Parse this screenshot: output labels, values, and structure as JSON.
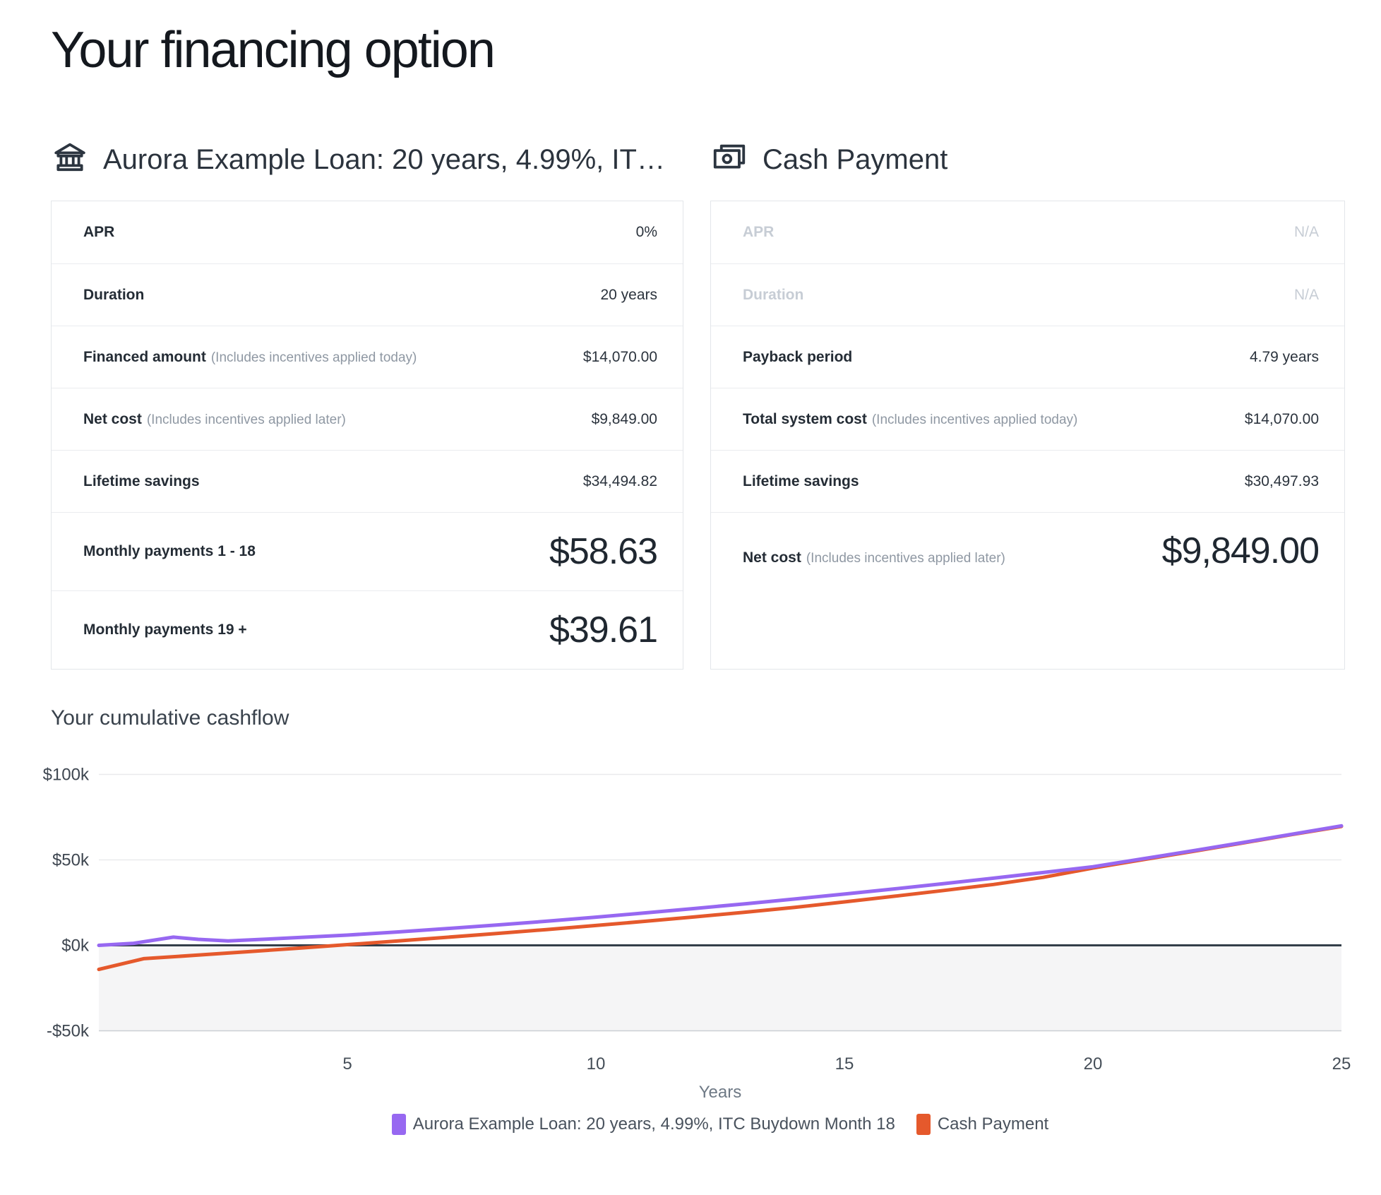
{
  "page": {
    "title": "Your financing option"
  },
  "loan_card": {
    "header": "Aurora Example Loan: 20 years, 4.99%, IT…",
    "icon": "bank-icon",
    "rows": [
      {
        "label": "APR",
        "note": "",
        "value": "0%",
        "size": "",
        "disabled": false
      },
      {
        "label": "Duration",
        "note": "",
        "value": "20 years",
        "size": "",
        "disabled": false
      },
      {
        "label": "Financed amount",
        "note": "(Includes incentives applied today)",
        "value": "$14,070.00",
        "size": "",
        "disabled": false
      },
      {
        "label": "Net cost",
        "note": "(Includes incentives applied later)",
        "value": "$9,849.00",
        "size": "",
        "disabled": false
      },
      {
        "label": "Lifetime savings",
        "note": "",
        "value": "$34,494.82",
        "size": "",
        "disabled": false
      },
      {
        "label": "Monthly payments 1 - 18",
        "note": "",
        "value": "$58.63",
        "size": "large",
        "disabled": false
      },
      {
        "label": "Monthly payments 19 +",
        "note": "",
        "value": "$39.61",
        "size": "large",
        "disabled": false
      }
    ]
  },
  "cash_card": {
    "header": "Cash Payment",
    "icon": "cash-icon",
    "rows": [
      {
        "label": "APR",
        "note": "",
        "value": "N/A",
        "size": "",
        "disabled": true
      },
      {
        "label": "Duration",
        "note": "",
        "value": "N/A",
        "size": "",
        "disabled": true
      },
      {
        "label": "Payback period",
        "note": "",
        "value": "4.79 years",
        "size": "",
        "disabled": false
      },
      {
        "label": "Total system cost",
        "note": "(Includes incentives applied today)",
        "value": "$14,070.00",
        "size": "",
        "disabled": false
      },
      {
        "label": "Lifetime savings",
        "note": "",
        "value": "$30,497.93",
        "size": "",
        "disabled": false
      },
      {
        "label": "Net cost",
        "note": "(Includes incentives applied later)",
        "value": "$9,849.00",
        "size": "xl",
        "disabled": false
      }
    ]
  },
  "chart_data": {
    "type": "line",
    "title": "Your cumulative cashflow",
    "xlabel": "Years",
    "x_range": [
      0,
      25
    ],
    "x_ticks": [
      5,
      10,
      15,
      20,
      25
    ],
    "y_range_k": [
      -50,
      100
    ],
    "y_ticks_k": [
      100,
      50,
      0,
      -50
    ],
    "y_tick_labels": [
      "$100k",
      "$50k",
      "$0k",
      "-$50k"
    ],
    "grid": true,
    "legend_position": "bottom",
    "zero_line_color": "#333e49",
    "below_zero_fill": "#f5f5f6",
    "gridline_color": "#e9eaec",
    "bottom_line_color": "#cbcfd3",
    "series": [
      {
        "name": "Cash Payment",
        "color": "#e5592c",
        "x": [
          0,
          0.9,
          2,
          3,
          4,
          4.8,
          6,
          7,
          8,
          9,
          10,
          11,
          12,
          13,
          14,
          15,
          16,
          17,
          18,
          19,
          20,
          21,
          22,
          23,
          24,
          25
        ],
        "y_k": [
          -14.1,
          -7.8,
          -5.7,
          -3.7,
          -1.7,
          0,
          2.5,
          4.7,
          6.9,
          9.2,
          11.6,
          14.1,
          16.7,
          19.4,
          22.2,
          25.4,
          28.7,
          32.1,
          35.6,
          39.8,
          45.2,
          50.1,
          54.9,
          59.8,
          64.8,
          69.6
        ]
      },
      {
        "name": "Aurora Example Loan: 20 years, 4.99%, ITC Buydown Month 18",
        "color": "#9768f1",
        "x": [
          0,
          0.7,
          1.5,
          2,
          2.6,
          3.5,
          5,
          6,
          7,
          8,
          9,
          10,
          11,
          12,
          13,
          14,
          15,
          16,
          17,
          18,
          19,
          20,
          21,
          22,
          23,
          24,
          25
        ],
        "y_k": [
          0,
          1.2,
          4.8,
          3.5,
          2.6,
          3.8,
          6,
          7.8,
          9.8,
          11.9,
          14.1,
          16.5,
          19,
          21.6,
          24.3,
          27.1,
          30,
          33,
          36.1,
          39.3,
          42.6,
          46,
          50.6,
          55.3,
          60.1,
          65,
          69.9
        ]
      }
    ],
    "legend_order": [
      1,
      0
    ]
  }
}
